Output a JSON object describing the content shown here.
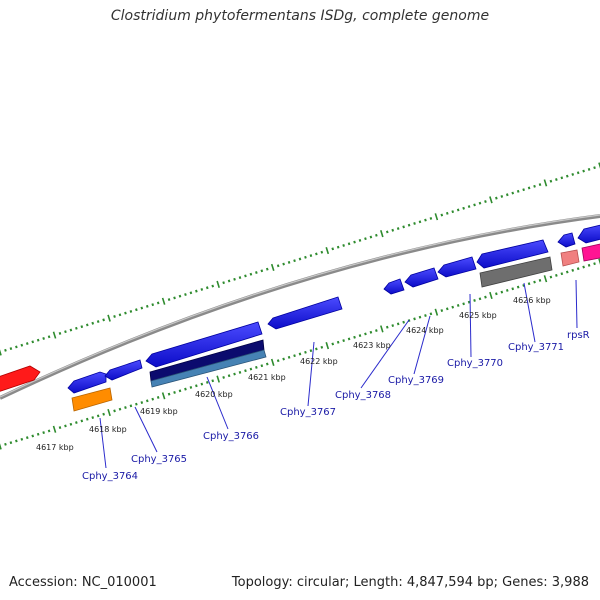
{
  "title": "Clostridium phytofermentans ISDg, complete genome",
  "footer": {
    "accession": "Accession: NC_010001",
    "summary": "Topology: circular; Length: 4,847,594 bp; Genes: 3,988"
  },
  "colors": {
    "backbone": "#8a8a8a",
    "tick": "#2e8b2e",
    "gene_blue": "#1515e6",
    "gene_navy": "#0b0b6e",
    "gene_steel": "#4682b4",
    "gene_orange": "#ff8c00",
    "gene_red": "#ff1a1a",
    "gene_gray": "#6e6e6e",
    "gene_pink": "#f08080",
    "gene_magenta": "#ff1493",
    "label": "#1a1aa6"
  },
  "position_labels": [
    "4617 kbp",
    "4618 kbp",
    "4619 kbp",
    "4620 kbp",
    "4621 kbp",
    "4622 kbp",
    "4623 kbp",
    "4624 kbp",
    "4625 kbp",
    "4626 kbp"
  ],
  "gene_labels": [
    "Cphy_3764",
    "Cphy_3765",
    "Cphy_3766",
    "Cphy_3767",
    "Cphy_3768",
    "Cphy_3769",
    "Cphy_3770",
    "Cphy_3771",
    "rpsR"
  ]
}
